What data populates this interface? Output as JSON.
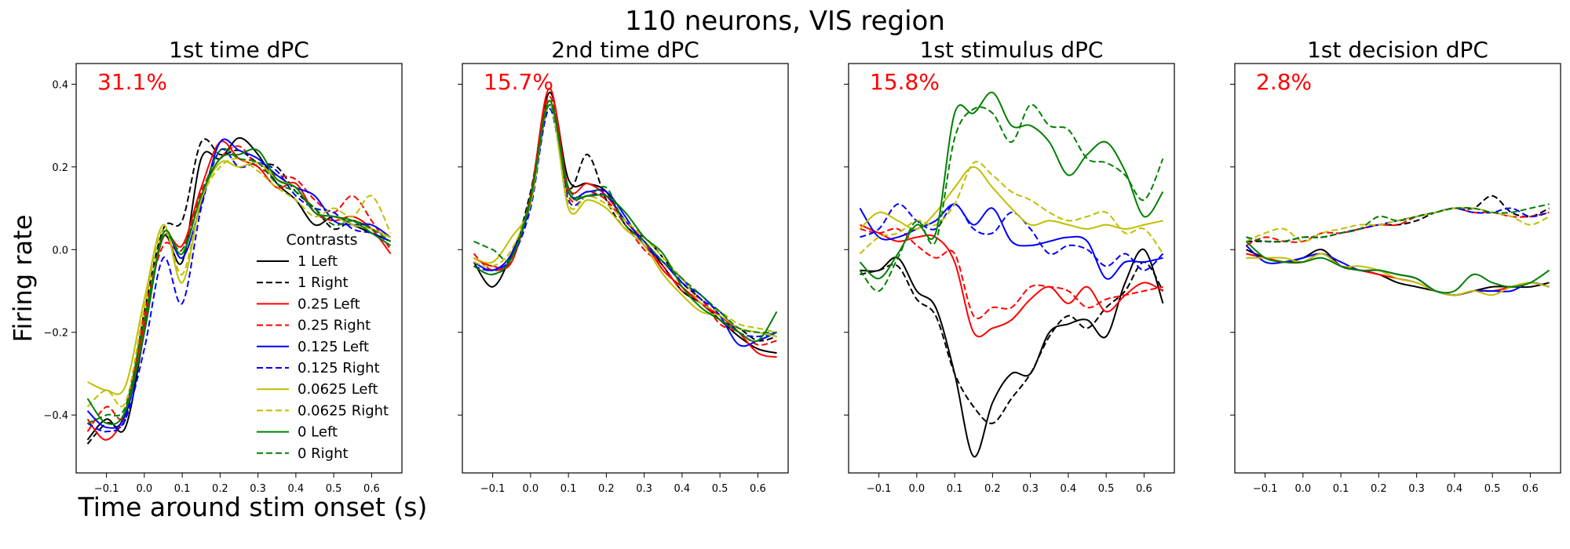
{
  "figure": {
    "suptitle": "110 neurons, VIS region",
    "ylabel": "Firing rate",
    "xlabel": "Time around stim onset (s)"
  },
  "legend": {
    "title": "Contrasts",
    "entries": [
      {
        "label": "1 Left",
        "color": "#000000",
        "dash": false
      },
      {
        "label": "1 Right",
        "color": "#000000",
        "dash": true
      },
      {
        "label": "0.25 Left",
        "color": "#ff0000",
        "dash": false
      },
      {
        "label": "0.25 Right",
        "color": "#ff0000",
        "dash": true
      },
      {
        "label": "0.125 Left",
        "color": "#0000ff",
        "dash": false
      },
      {
        "label": "0.125 Right",
        "color": "#0000ff",
        "dash": true
      },
      {
        "label": "0.0625 Left",
        "color": "#bfbf00",
        "dash": false
      },
      {
        "label": "0.0625 Right",
        "color": "#bfbf00",
        "dash": true
      },
      {
        "label": "0 Left",
        "color": "#008000",
        "dash": false
      },
      {
        "label": "0 Right",
        "color": "#008000",
        "dash": true
      }
    ]
  },
  "chart_data": [
    {
      "type": "line",
      "title": "1st time dPC",
      "annotation": "31.1%",
      "annotation_color": "#ff0000",
      "xlim": [
        -0.18,
        0.68
      ],
      "ylim": [
        -0.54,
        0.45
      ],
      "xticks": [
        "-0.1",
        "0.0",
        "0.1",
        "0.2",
        "0.3",
        "0.4",
        "0.5",
        "0.6"
      ],
      "yticks": [
        "-0.4",
        "-0.2",
        "0.0",
        "0.2",
        "0.4"
      ],
      "x": [
        -0.15,
        -0.1,
        -0.05,
        0.0,
        0.05,
        0.1,
        0.15,
        0.2,
        0.25,
        0.3,
        0.35,
        0.4,
        0.45,
        0.5,
        0.55,
        0.6,
        0.65
      ],
      "series": [
        {
          "values": [
            -0.46,
            -0.41,
            -0.43,
            -0.2,
            0.03,
            -0.03,
            0.22,
            0.22,
            0.27,
            0.23,
            0.16,
            0.12,
            0.06,
            0.08,
            0.06,
            0.04,
            0.02
          ]
        },
        {
          "values": [
            -0.47,
            -0.42,
            -0.41,
            -0.15,
            0.05,
            0.07,
            0.26,
            0.23,
            0.24,
            0.21,
            0.2,
            0.14,
            0.1,
            0.05,
            0.07,
            0.05,
            0.03
          ]
        },
        {
          "values": [
            -0.41,
            -0.46,
            -0.39,
            -0.18,
            0.03,
            0.01,
            0.15,
            0.26,
            0.22,
            0.2,
            0.15,
            0.16,
            0.09,
            0.07,
            0.08,
            0.05,
            -0.01
          ]
        },
        {
          "values": [
            -0.44,
            -0.38,
            -0.4,
            -0.16,
            0.01,
            0.0,
            0.14,
            0.22,
            0.25,
            0.2,
            0.18,
            0.17,
            0.12,
            0.09,
            0.13,
            0.07,
            0.0
          ]
        },
        {
          "values": [
            -0.39,
            -0.43,
            -0.4,
            -0.2,
            0.04,
            -0.02,
            0.11,
            0.26,
            0.24,
            0.22,
            0.18,
            0.15,
            0.13,
            0.07,
            0.06,
            0.06,
            0.03
          ]
        },
        {
          "values": [
            -0.42,
            -0.44,
            -0.41,
            -0.24,
            -0.02,
            -0.13,
            0.1,
            0.24,
            0.2,
            0.21,
            0.19,
            0.13,
            0.1,
            0.09,
            0.05,
            0.04,
            0.02
          ]
        },
        {
          "values": [
            -0.32,
            -0.34,
            -0.33,
            -0.12,
            0.06,
            -0.08,
            0.12,
            0.21,
            0.2,
            0.21,
            0.17,
            0.15,
            0.09,
            0.08,
            0.06,
            0.05,
            0.03
          ]
        },
        {
          "values": [
            -0.38,
            -0.34,
            -0.37,
            -0.14,
            0.05,
            -0.06,
            0.12,
            0.2,
            0.22,
            0.19,
            0.15,
            0.12,
            0.08,
            0.1,
            0.08,
            0.13,
            0.04
          ]
        },
        {
          "values": [
            -0.36,
            -0.42,
            -0.39,
            -0.2,
            0.04,
            -0.01,
            0.13,
            0.22,
            0.23,
            0.24,
            0.17,
            0.15,
            0.09,
            0.08,
            0.07,
            0.04,
            0.01
          ]
        },
        {
          "values": [
            -0.42,
            -0.4,
            -0.38,
            -0.17,
            0.03,
            0.0,
            0.13,
            0.24,
            0.22,
            0.21,
            0.16,
            0.14,
            0.1,
            0.06,
            0.07,
            0.05,
            0.02
          ]
        }
      ]
    },
    {
      "type": "line",
      "title": "2nd time dPC",
      "annotation": "15.7%",
      "annotation_color": "#ff0000",
      "xlim": [
        -0.18,
        0.68
      ],
      "ylim": [
        -0.54,
        0.45
      ],
      "xticks": [
        "-0.1",
        "0.0",
        "0.1",
        "0.2",
        "0.3",
        "0.4",
        "0.5",
        "0.6"
      ],
      "yticks": [
        "-0.4",
        "-0.2",
        "0.0",
        "0.2",
        "0.4"
      ],
      "x": [
        -0.15,
        -0.1,
        -0.05,
        0.0,
        0.05,
        0.1,
        0.15,
        0.2,
        0.25,
        0.3,
        0.35,
        0.4,
        0.45,
        0.5,
        0.55,
        0.6,
        0.65
      ],
      "series": [
        {
          "values": [
            -0.03,
            -0.09,
            -0.01,
            0.12,
            0.38,
            0.17,
            0.16,
            0.14,
            0.06,
            0.02,
            -0.04,
            -0.1,
            -0.13,
            -0.17,
            -0.21,
            -0.24,
            -0.25
          ]
        },
        {
          "values": [
            -0.04,
            -0.06,
            -0.02,
            0.14,
            0.36,
            0.15,
            0.23,
            0.12,
            0.05,
            0.03,
            -0.02,
            -0.08,
            -0.12,
            -0.17,
            -0.19,
            -0.22,
            -0.21
          ]
        },
        {
          "values": [
            -0.02,
            -0.04,
            -0.03,
            0.13,
            0.39,
            0.15,
            0.16,
            0.13,
            0.07,
            0.02,
            -0.05,
            -0.09,
            -0.13,
            -0.16,
            -0.2,
            -0.25,
            -0.26
          ]
        },
        {
          "values": [
            -0.01,
            -0.05,
            -0.02,
            0.12,
            0.37,
            0.13,
            0.14,
            0.12,
            0.06,
            0.0,
            -0.04,
            -0.1,
            -0.12,
            -0.18,
            -0.2,
            -0.23,
            -0.22
          ]
        },
        {
          "values": [
            -0.03,
            -0.05,
            -0.01,
            0.11,
            0.35,
            0.14,
            0.14,
            0.14,
            0.08,
            0.01,
            -0.03,
            -0.08,
            -0.11,
            -0.16,
            -0.23,
            -0.22,
            -0.2
          ]
        },
        {
          "values": [
            -0.04,
            -0.05,
            -0.02,
            0.1,
            0.34,
            0.12,
            0.13,
            0.13,
            0.07,
            0.02,
            -0.03,
            -0.07,
            -0.12,
            -0.15,
            -0.2,
            -0.21,
            -0.2
          ]
        },
        {
          "values": [
            -0.02,
            -0.03,
            0.03,
            0.11,
            0.36,
            0.1,
            0.12,
            0.1,
            0.05,
            0.01,
            -0.06,
            -0.11,
            -0.15,
            -0.16,
            -0.19,
            -0.2,
            -0.21
          ]
        },
        {
          "values": [
            -0.03,
            -0.04,
            0.0,
            0.12,
            0.35,
            0.11,
            0.13,
            0.11,
            0.07,
            0.03,
            -0.02,
            -0.07,
            -0.13,
            -0.15,
            -0.18,
            -0.19,
            -0.2
          ]
        },
        {
          "values": [
            -0.04,
            -0.06,
            -0.02,
            0.12,
            0.36,
            0.14,
            0.13,
            0.13,
            0.09,
            0.03,
            -0.01,
            -0.09,
            -0.14,
            -0.17,
            -0.2,
            -0.22,
            -0.15
          ]
        },
        {
          "values": [
            0.02,
            0.0,
            -0.02,
            0.13,
            0.35,
            0.15,
            0.13,
            0.15,
            0.06,
            0.02,
            -0.03,
            -0.07,
            -0.11,
            -0.15,
            -0.19,
            -0.2,
            -0.2
          ]
        }
      ]
    },
    {
      "type": "line",
      "title": "1st stimulus dPC",
      "annotation": "15.8%",
      "annotation_color": "#ff0000",
      "xlim": [
        -0.18,
        0.68
      ],
      "ylim": [
        -0.54,
        0.45
      ],
      "xticks": [
        "-0.1",
        "0.0",
        "0.1",
        "0.2",
        "0.3",
        "0.4",
        "0.5",
        "0.6"
      ],
      "yticks": [
        "-0.4",
        "-0.2",
        "0.0",
        "0.2",
        "0.4"
      ],
      "x": [
        -0.15,
        -0.1,
        -0.05,
        0.0,
        0.05,
        0.1,
        0.15,
        0.2,
        0.25,
        0.3,
        0.35,
        0.4,
        0.45,
        0.5,
        0.55,
        0.6,
        0.65
      ],
      "series": [
        {
          "values": [
            -0.05,
            -0.05,
            -0.02,
            -0.1,
            -0.14,
            -0.3,
            -0.5,
            -0.37,
            -0.3,
            -0.3,
            -0.2,
            -0.18,
            -0.17,
            -0.21,
            -0.08,
            0.0,
            -0.13
          ]
        },
        {
          "values": [
            -0.06,
            -0.05,
            -0.04,
            -0.12,
            -0.16,
            -0.3,
            -0.38,
            -0.42,
            -0.36,
            -0.3,
            -0.21,
            -0.16,
            -0.19,
            -0.14,
            -0.1,
            -0.03,
            -0.1
          ]
        },
        {
          "values": [
            0.06,
            0.04,
            0.02,
            0.03,
            0.03,
            -0.03,
            -0.2,
            -0.19,
            -0.17,
            -0.12,
            -0.09,
            -0.13,
            -0.09,
            -0.15,
            -0.11,
            -0.08,
            -0.1
          ]
        },
        {
          "values": [
            0.05,
            0.04,
            0.05,
            0.01,
            -0.02,
            -0.01,
            -0.16,
            -0.14,
            -0.14,
            -0.09,
            -0.09,
            -0.1,
            -0.14,
            -0.12,
            -0.11,
            -0.1,
            -0.09
          ]
        },
        {
          "values": [
            0.1,
            0.03,
            0.03,
            0.05,
            0.07,
            0.11,
            0.06,
            0.1,
            0.02,
            0.01,
            0.02,
            0.03,
            0.02,
            -0.07,
            -0.03,
            -0.03,
            -0.02
          ]
        },
        {
          "values": [
            0.03,
            0.05,
            0.11,
            0.07,
            0.05,
            0.11,
            0.05,
            0.04,
            0.09,
            0.05,
            -0.01,
            0.01,
            0.0,
            -0.04,
            -0.01,
            -0.05,
            -0.01
          ]
        },
        {
          "values": [
            0.05,
            0.09,
            0.07,
            0.05,
            0.09,
            0.15,
            0.2,
            0.15,
            0.1,
            0.06,
            0.07,
            0.06,
            0.05,
            0.06,
            0.05,
            0.06,
            0.07
          ]
        },
        {
          "values": [
            -0.01,
            0.03,
            0.04,
            0.07,
            0.06,
            0.11,
            0.21,
            0.18,
            0.14,
            0.12,
            0.09,
            0.07,
            0.08,
            0.09,
            0.04,
            0.05,
            -0.01
          ]
        },
        {
          "values": [
            -0.03,
            -0.07,
            -0.01,
            0.06,
            0.04,
            0.33,
            0.33,
            0.38,
            0.3,
            0.3,
            0.26,
            0.18,
            0.23,
            0.26,
            0.19,
            0.08,
            0.14
          ]
        },
        {
          "values": [
            -0.05,
            -0.1,
            -0.02,
            0.07,
            0.02,
            0.27,
            0.34,
            0.33,
            0.26,
            0.35,
            0.3,
            0.29,
            0.22,
            0.21,
            0.18,
            0.12,
            0.22
          ]
        }
      ]
    },
    {
      "type": "line",
      "title": "1st decision dPC",
      "annotation": "2.8%",
      "annotation_color": "#ff0000",
      "xlim": [
        -0.18,
        0.68
      ],
      "ylim": [
        -0.54,
        0.45
      ],
      "xticks": [
        "-0.1",
        "0.0",
        "0.1",
        "0.2",
        "0.3",
        "0.4",
        "0.5",
        "0.6"
      ],
      "yticks": [
        "-0.4",
        "-0.2",
        "0.0",
        "0.2",
        "0.4"
      ],
      "x": [
        -0.15,
        -0.1,
        -0.05,
        0.0,
        0.05,
        0.1,
        0.15,
        0.2,
        0.25,
        0.3,
        0.35,
        0.4,
        0.45,
        0.5,
        0.55,
        0.6,
        0.65
      ],
      "series": [
        {
          "values": [
            0.0,
            -0.02,
            -0.03,
            -0.02,
            0.0,
            -0.04,
            -0.05,
            -0.06,
            -0.08,
            -0.09,
            -0.1,
            -0.11,
            -0.1,
            -0.09,
            -0.09,
            -0.09,
            -0.08
          ]
        },
        {
          "values": [
            0.02,
            0.02,
            0.02,
            0.03,
            0.03,
            0.04,
            0.05,
            0.06,
            0.06,
            0.07,
            0.09,
            0.1,
            0.1,
            0.13,
            0.09,
            0.08,
            0.1
          ]
        },
        {
          "values": [
            -0.01,
            -0.02,
            -0.03,
            -0.03,
            -0.01,
            -0.04,
            -0.05,
            -0.06,
            -0.07,
            -0.08,
            -0.1,
            -0.11,
            -0.1,
            -0.1,
            -0.09,
            -0.08,
            -0.09
          ]
        },
        {
          "values": [
            0.01,
            0.03,
            0.02,
            0.02,
            0.04,
            0.04,
            0.05,
            0.06,
            0.06,
            0.08,
            0.09,
            0.1,
            0.09,
            0.09,
            0.08,
            0.08,
            0.09
          ]
        },
        {
          "values": [
            0.01,
            -0.03,
            -0.03,
            -0.02,
            -0.01,
            -0.03,
            -0.05,
            -0.05,
            -0.06,
            -0.07,
            -0.1,
            -0.11,
            -0.1,
            -0.1,
            -0.1,
            -0.08,
            -0.09
          ]
        },
        {
          "values": [
            0.03,
            0.02,
            0.02,
            0.03,
            0.03,
            0.04,
            0.05,
            0.06,
            0.07,
            0.08,
            0.09,
            0.1,
            0.09,
            0.09,
            0.1,
            0.08,
            0.09
          ]
        },
        {
          "values": [
            -0.02,
            -0.02,
            -0.02,
            -0.03,
            -0.01,
            -0.04,
            -0.04,
            -0.05,
            -0.07,
            -0.08,
            -0.1,
            -0.11,
            -0.1,
            -0.11,
            -0.09,
            -0.08,
            -0.09
          ]
        },
        {
          "values": [
            0.02,
            0.04,
            0.05,
            0.02,
            0.04,
            0.05,
            0.06,
            0.06,
            0.07,
            0.08,
            0.09,
            0.1,
            0.1,
            0.09,
            0.08,
            0.06,
            0.08
          ]
        },
        {
          "values": [
            0.02,
            -0.02,
            -0.03,
            -0.03,
            -0.02,
            -0.04,
            -0.05,
            -0.05,
            -0.06,
            -0.07,
            -0.1,
            -0.1,
            -0.06,
            -0.08,
            -0.09,
            -0.08,
            -0.05
          ]
        },
        {
          "values": [
            0.03,
            0.02,
            0.02,
            0.03,
            0.03,
            0.04,
            0.05,
            0.08,
            0.07,
            0.08,
            0.09,
            0.1,
            0.1,
            0.09,
            0.09,
            0.1,
            0.11
          ]
        }
      ]
    }
  ]
}
